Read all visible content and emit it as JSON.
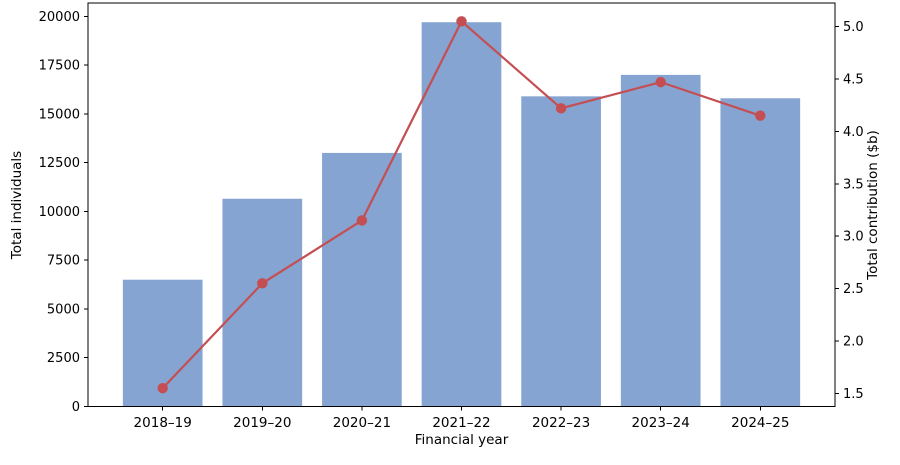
{
  "chart_data": {
    "type": "bar",
    "subtype": "bar-with-line-overlay",
    "title": "",
    "xlabel": "Financial year",
    "ylabel_left": "Total individuals",
    "ylabel_right": "Total contribution ($b)",
    "categories": [
      "2018–19",
      "2019–20",
      "2020–21",
      "2021–22",
      "2022–23",
      "2023–24",
      "2024–25"
    ],
    "series": [
      {
        "name": "Total individuals",
        "type": "bar",
        "axis": "left",
        "color": "#86A4D1",
        "values": [
          6500,
          10650,
          13000,
          19700,
          15900,
          17000,
          15800
        ]
      },
      {
        "name": "Total contribution ($b)",
        "type": "line",
        "axis": "right",
        "color": "#C44E52",
        "values": [
          1.55,
          2.55,
          3.15,
          5.05,
          4.22,
          4.47,
          4.15
        ]
      }
    ],
    "ylim_left": [
      0,
      20685
    ],
    "ylim_right": [
      1.375,
      5.225
    ],
    "yticks_left": [
      0,
      2500,
      5000,
      7500,
      10000,
      12500,
      15000,
      17500,
      20000
    ],
    "yticks_right": [
      1.5,
      2.0,
      2.5,
      3.0,
      3.5,
      4.0,
      4.5,
      5.0
    ],
    "grid": false,
    "legend_position": "none",
    "spine_color": "#000000",
    "tick_label_color": "#000000"
  }
}
